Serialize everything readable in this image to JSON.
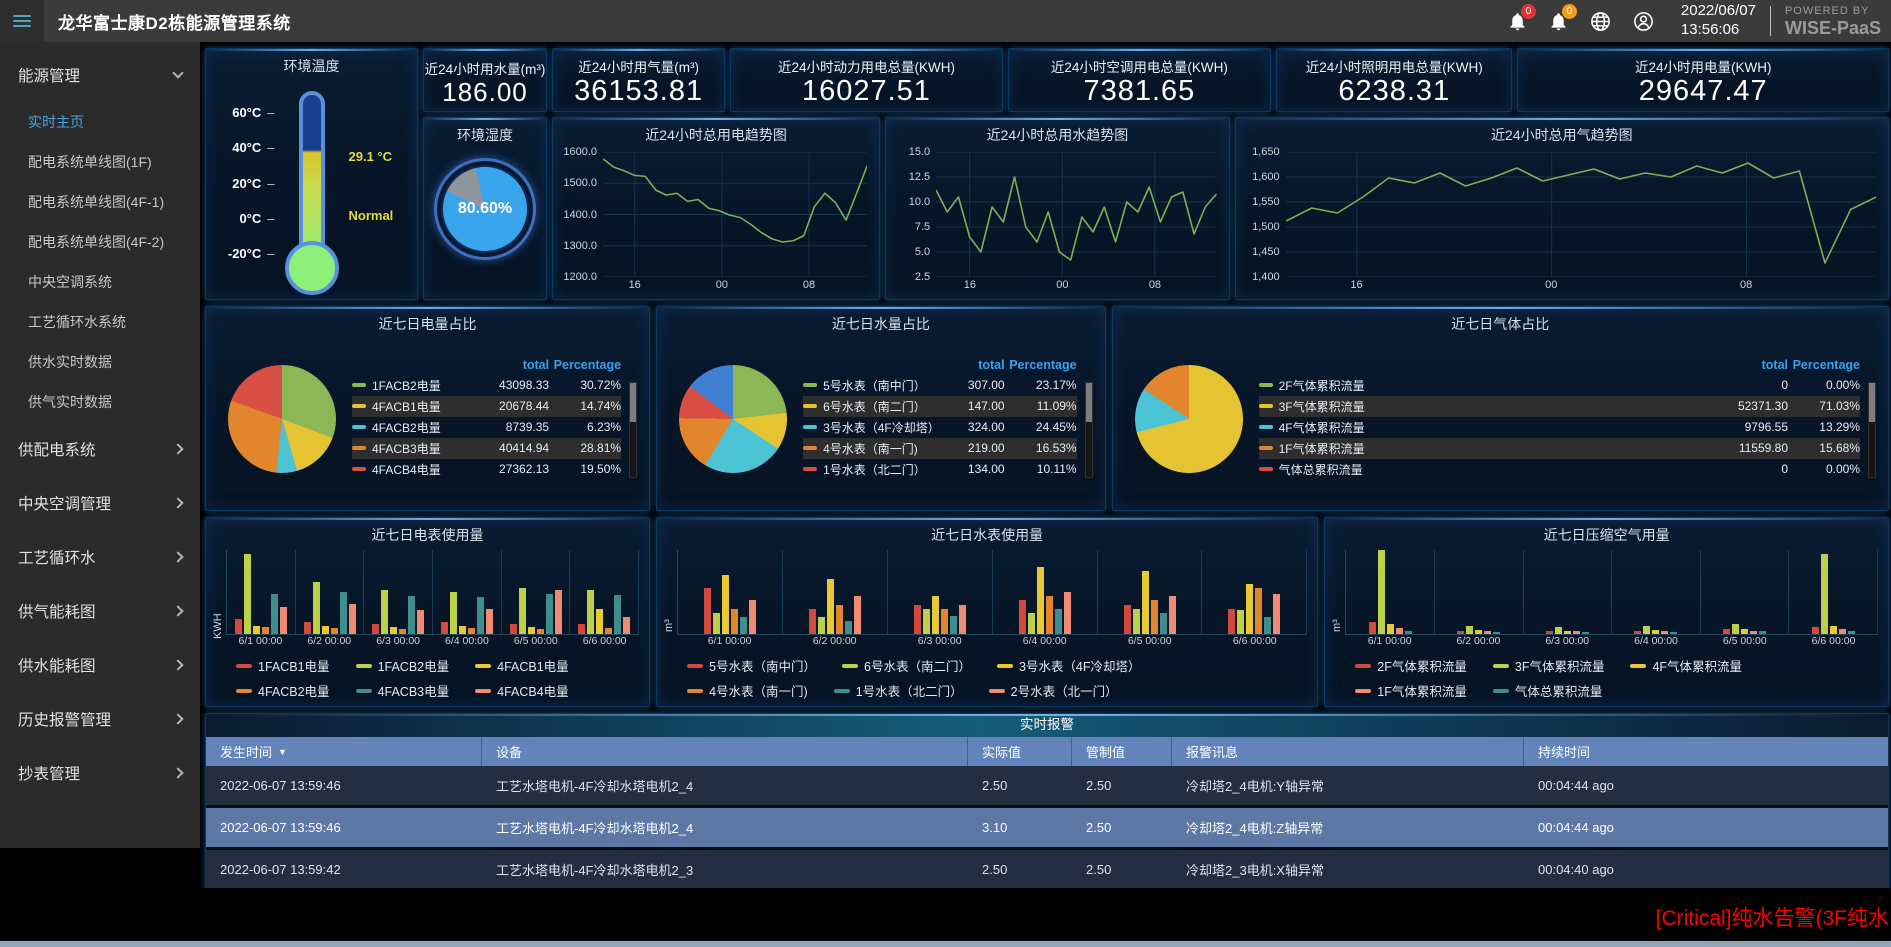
{
  "navbar": {
    "title": "龙华富士康D2栋能源管理系统",
    "date": "2022/06/07",
    "time": "13:56:06",
    "alarm_badge": "0",
    "notice_badge": "0",
    "powered_line1": "POWERED BY",
    "powered_line2": "WISE-PaaS"
  },
  "sidebar": {
    "root_section": {
      "label": "能源管理"
    },
    "subitems": [
      {
        "label": "实时主页",
        "active": true
      },
      {
        "label": "配电系统单线图(1F)"
      },
      {
        "label": "配电系统单线图(4F-1)"
      },
      {
        "label": "配电系统单线图(4F-2)"
      },
      {
        "label": "中央空调系统"
      },
      {
        "label": "工艺循环水系统"
      },
      {
        "label": "供水实时数据"
      },
      {
        "label": "供气实时数据"
      }
    ],
    "sections": [
      {
        "label": "供配电系统"
      },
      {
        "label": "中央空调管理"
      },
      {
        "label": "工艺循环水"
      },
      {
        "label": "供气能耗图"
      },
      {
        "label": "供水能耗图"
      },
      {
        "label": "历史报警管理"
      },
      {
        "label": "抄表管理"
      }
    ]
  },
  "thermometer": {
    "title": "环境温度",
    "ticks": [
      "60°C",
      "40°C",
      "20°C",
      "0°C",
      "-20°C"
    ],
    "reading": "29.1 °C",
    "status": "Normal"
  },
  "humidity": {
    "title": "环境湿度",
    "value": "80.60%"
  },
  "kpi_cards": [
    {
      "label": "近24小时用水量(m³)",
      "value": "186.00"
    },
    {
      "label": "近24小时用气量(m³)",
      "value": "36153.81"
    },
    {
      "label": "近24小时动力用电总量(KWH)",
      "value": "16027.51"
    },
    {
      "label": "近24小时空调用电总量(KWH)",
      "value": "7381.65"
    },
    {
      "label": "近24小时照明用电总量(KWH)",
      "value": "6238.31"
    },
    {
      "label": "近24小时用电量(KWH)",
      "value": "29647.47"
    }
  ],
  "chart_data": [
    {
      "id": "power_trend",
      "type": "line",
      "title": "近24小时总用电趋势图",
      "yticks": [
        "1600.0",
        "1500.0",
        "1400.0",
        "1300.0",
        "1200.0"
      ],
      "ylim": [
        1200,
        1600
      ],
      "xticks": [
        "16",
        "00",
        "08"
      ],
      "xpos": [
        12,
        45,
        78
      ],
      "color": "#7fae56",
      "values": [
        1578,
        1552,
        1540,
        1525,
        1522,
        1478,
        1462,
        1468,
        1442,
        1448,
        1420,
        1412,
        1398,
        1390,
        1368,
        1342,
        1322,
        1312,
        1316,
        1332,
        1425,
        1468,
        1438,
        1382,
        1468,
        1556
      ]
    },
    {
      "id": "water_trend",
      "type": "line",
      "title": "近24小时总用水趋势图",
      "yticks": [
        "15.0",
        "12.5",
        "10.0",
        "7.5",
        "5.0",
        "2.5"
      ],
      "ylim": [
        2.5,
        15
      ],
      "xticks": [
        "16",
        "00",
        "08"
      ],
      "xpos": [
        12,
        45,
        78
      ],
      "color": "#7fae56",
      "values": [
        11.2,
        9,
        10.5,
        6.5,
        5,
        9.5,
        8,
        12.5,
        7.5,
        6,
        9,
        5,
        4.2,
        8.5,
        7,
        9.5,
        6,
        10,
        9,
        11.5,
        8,
        10.5,
        11,
        6.8,
        9.5,
        10.8
      ]
    },
    {
      "id": "gas_trend",
      "type": "line",
      "title": "近24小时总用气趋势图",
      "yticks": [
        "1,650",
        "1,600",
        "1,550",
        "1,500",
        "1,450",
        "1,400"
      ],
      "ylim": [
        1400,
        1650
      ],
      "xticks": [
        "16",
        "00",
        "08"
      ],
      "xpos": [
        12,
        45,
        78
      ],
      "color": "#7fae56",
      "values": [
        1512,
        1538,
        1528,
        1560,
        1598,
        1588,
        1608,
        1582,
        1598,
        1618,
        1592,
        1604,
        1616,
        1596,
        1608,
        1600,
        1622,
        1608,
        1628,
        1598,
        1612,
        1428,
        1535,
        1560
      ]
    },
    {
      "id": "power_pie",
      "type": "pie",
      "title": "近七日电量占比",
      "headers": [
        "total",
        "Percentage"
      ],
      "rows": [
        {
          "label": "1FACB2电量",
          "total": "43098.33",
          "pct": "30.72%",
          "color": "#8db654"
        },
        {
          "label": "4FACB1电量",
          "total": "20678.44",
          "pct": "14.74%",
          "color": "#e5c433"
        },
        {
          "label": "4FACB2电量",
          "total": "8739.35",
          "pct": "6.23%",
          "color": "#4cc3d4"
        },
        {
          "label": "4FACB3电量",
          "total": "40414.94",
          "pct": "28.81%",
          "color": "#e2862e"
        },
        {
          "label": "4FACB4电量",
          "total": "27362.13",
          "pct": "19.50%",
          "color": "#d94f43"
        }
      ],
      "slices": [
        {
          "value": 30.72,
          "color": "#8db654"
        },
        {
          "value": 14.74,
          "color": "#e5c433"
        },
        {
          "value": 6.23,
          "color": "#4cc3d4"
        },
        {
          "value": 28.81,
          "color": "#e2862e"
        },
        {
          "value": 19.5,
          "color": "#d94f43"
        }
      ]
    },
    {
      "id": "water_pie",
      "type": "pie",
      "title": "近七日水量占比",
      "headers": [
        "total",
        "Percentage"
      ],
      "rows": [
        {
          "label": "5号水表（南中门）",
          "total": "307.00",
          "pct": "23.17%",
          "color": "#8db654"
        },
        {
          "label": "6号水表（南二门）",
          "total": "147.00",
          "pct": "11.09%",
          "color": "#e5c433"
        },
        {
          "label": "3号水表（4F冷却塔）",
          "total": "324.00",
          "pct": "24.45%",
          "color": "#4cc3d4"
        },
        {
          "label": "4号水表（南一门)",
          "total": "219.00",
          "pct": "16.53%",
          "color": "#e2862e"
        },
        {
          "label": "1号水表（北二门）",
          "total": "134.00",
          "pct": "10.11%",
          "color": "#d94f43"
        }
      ],
      "slices": [
        {
          "value": 23.17,
          "color": "#8db654"
        },
        {
          "value": 11.09,
          "color": "#e5c433"
        },
        {
          "value": 24.45,
          "color": "#4cc3d4"
        },
        {
          "value": 16.53,
          "color": "#e2862e"
        },
        {
          "value": 10.11,
          "color": "#d94f43"
        },
        {
          "value": 14.65,
          "color": "#3f7fd1"
        }
      ]
    },
    {
      "id": "gas_pie",
      "type": "pie",
      "title": "近七日气体占比",
      "headers": [
        "total",
        "Percentage"
      ],
      "rows": [
        {
          "label": "2F气体累积流量",
          "total": "0",
          "pct": "0.00%",
          "color": "#8db654"
        },
        {
          "label": "3F气体累积流量",
          "total": "52371.30",
          "pct": "71.03%",
          "color": "#e5c433"
        },
        {
          "label": "4F气体累积流量",
          "total": "9796.55",
          "pct": "13.29%",
          "color": "#4cc3d4"
        },
        {
          "label": "1F气体累积流量",
          "total": "11559.80",
          "pct": "15.68%",
          "color": "#e2862e"
        },
        {
          "label": "气体总累积流量",
          "total": "0",
          "pct": "0.00%",
          "color": "#d94f43"
        }
      ],
      "slices": [
        {
          "value": 71.03,
          "color": "#e5c433"
        },
        {
          "value": 13.29,
          "color": "#4cc3d4"
        },
        {
          "value": 15.68,
          "color": "#e2862e"
        }
      ]
    },
    {
      "id": "power_bars",
      "type": "bar",
      "title": "近七日电表使用量",
      "ylabel": "KWH",
      "categories": [
        "6/1 00:00",
        "6/2 00:00",
        "6/3 00:00",
        "6/4 00:00",
        "6/5 00:00",
        "6/6 00:00"
      ],
      "series": [
        {
          "name": "1FACB1电量",
          "color": "#d24a3e",
          "values": [
            18,
            14,
            12,
            14,
            12,
            12
          ]
        },
        {
          "name": "1FACB2电量",
          "color": "#bdd04a",
          "values": [
            95,
            62,
            52,
            50,
            55,
            52
          ]
        },
        {
          "name": "4FACB1电量",
          "color": "#e8c934",
          "values": [
            10,
            9,
            8,
            10,
            8,
            30
          ]
        },
        {
          "name": "4FACB2电量",
          "color": "#e2862e",
          "values": [
            8,
            7,
            6,
            7,
            6,
            7
          ]
        },
        {
          "name": "4FACB3电量",
          "color": "#3f8d8d",
          "values": [
            48,
            50,
            45,
            44,
            48,
            46
          ]
        },
        {
          "name": "4FACB4电量",
          "color": "#f08a72",
          "values": [
            32,
            36,
            28,
            30,
            52,
            20
          ]
        }
      ]
    },
    {
      "id": "water_bars",
      "type": "bar",
      "title": "近七日水表使用量",
      "ylabel": "m³",
      "categories": [
        "6/1 00:00",
        "6/2 00:00",
        "6/3 00:00",
        "6/4 00:00",
        "6/5 00:00",
        "6/6 00:00"
      ],
      "series": [
        {
          "name": "5号水表（南中门）",
          "color": "#d24a3e",
          "values": [
            55,
            30,
            35,
            40,
            35,
            30
          ]
        },
        {
          "name": "6号水表（南二门）",
          "color": "#bdd04a",
          "values": [
            25,
            20,
            30,
            25,
            30,
            28
          ]
        },
        {
          "name": "3号水表（4F冷却塔）",
          "color": "#e8c934",
          "values": [
            70,
            65,
            45,
            80,
            75,
            60
          ]
        },
        {
          "name": "4号水表（南一门)",
          "color": "#e2862e",
          "values": [
            30,
            35,
            30,
            45,
            40,
            55
          ]
        },
        {
          "name": "1号水表（北二门）",
          "color": "#3f8d8d",
          "values": [
            20,
            15,
            22,
            30,
            25,
            20
          ]
        },
        {
          "name": "2号水表（北一门）",
          "color": "#f08a72",
          "values": [
            40,
            45,
            35,
            50,
            45,
            48
          ]
        }
      ]
    },
    {
      "id": "air_bars",
      "type": "bar",
      "title": "近七日压缩空气用量",
      "ylabel": "m³",
      "categories": [
        "6/1 00:00",
        "6/2 00:00",
        "6/3 00:00",
        "6/4 00:00",
        "6/5 00:00",
        "6/6 00:00"
      ],
      "series": [
        {
          "name": "2F气体累积流量",
          "color": "#d24a3e",
          "values": [
            14,
            4,
            3,
            4,
            6,
            8
          ]
        },
        {
          "name": "3F气体累积流量",
          "color": "#bdd04a",
          "values": [
            100,
            10,
            8,
            9,
            12,
            95
          ]
        },
        {
          "name": "4F气体累积流量",
          "color": "#e8c934",
          "values": [
            12,
            5,
            4,
            5,
            6,
            10
          ]
        },
        {
          "name": "1F气体累积流量",
          "color": "#f08a72",
          "values": [
            7,
            3,
            3,
            3,
            4,
            6
          ]
        },
        {
          "name": "气体总累积流量",
          "color": "#3f8d8d",
          "values": [
            3,
            2,
            2,
            2,
            3,
            3
          ]
        }
      ]
    }
  ],
  "alarm_table": {
    "title": "实时报警",
    "columns": [
      "发生时间",
      "设备",
      "实际值",
      "管制值",
      "报警讯息",
      "持续时间"
    ],
    "rows": [
      {
        "cells": [
          "2022-06-07 13:59:46",
          "工艺水塔电机-4F冷却水塔电机2_4",
          "2.50",
          "2.50",
          "冷却塔2_4电机:Y轴异常",
          "00:04:44 ago"
        ]
      },
      {
        "cells": [
          "2022-06-07 13:59:46",
          "工艺水塔电机-4F冷却水塔电机2_4",
          "3.10",
          "2.50",
          "冷却塔2_4电机:Z轴异常",
          "00:04:44 ago"
        ],
        "highlight": true
      },
      {
        "cells": [
          "2022-06-07 13:59:42",
          "工艺水塔电机-4F冷却水塔电机2_3",
          "2.50",
          "2.50",
          "冷却塔2_3电机:X轴异常",
          "00:04:40 ago"
        ]
      }
    ]
  },
  "marquee": {
    "text": "[Critical]纯水告警(3F纯水"
  }
}
